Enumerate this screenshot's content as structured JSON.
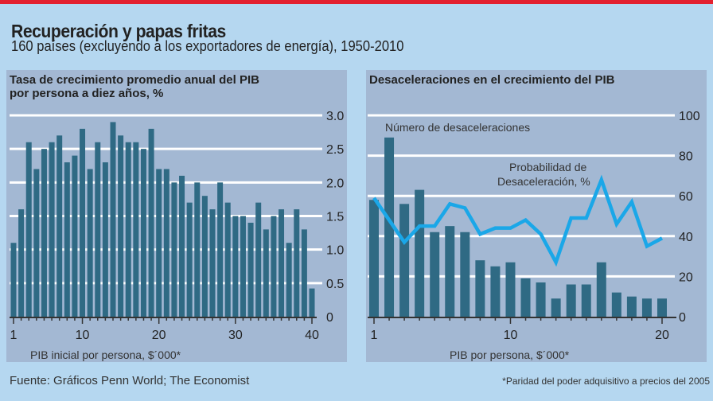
{
  "title": "Recuperación y papas fritas",
  "subtitle": "160 países (excluyendo a los exportadores de energía), 1950-2010",
  "source": "Fuente: Gráficos Penn World; The Economist",
  "footnote": "*Paridad del poder adquisitivo a precios del 2005",
  "colors": {
    "bar": "#2f6a84",
    "line": "#1aa7e8",
    "panel": "#a3b8d3",
    "background": "#b5d7f0",
    "accent": "#e3202f"
  },
  "chart_data": [
    {
      "type": "bar",
      "title": "Tasa de crecimiento promedio anual del PIB por persona a diez años, %",
      "title_lines": [
        "Tasa de crecimiento promedio anual del PIB",
        "por persona a diez años, %"
      ],
      "xlabel": "PIB inicial por persona, $´000*",
      "ylabel": "",
      "ylim": [
        0,
        3.0
      ],
      "yticks": [
        "0",
        "0.5",
        "1.0",
        "1.5",
        "2.0",
        "2.5",
        "3.0"
      ],
      "xticks": [
        "1",
        "10",
        "20",
        "30",
        "40"
      ],
      "x": [
        1,
        2,
        3,
        4,
        5,
        6,
        7,
        8,
        9,
        10,
        11,
        12,
        13,
        14,
        15,
        16,
        17,
        18,
        19,
        20,
        21,
        22,
        23,
        24,
        25,
        26,
        27,
        28,
        29,
        30,
        31,
        32,
        33,
        34,
        35,
        36,
        37,
        38,
        39,
        40
      ],
      "values": [
        1.1,
        1.6,
        2.6,
        2.2,
        2.5,
        2.6,
        2.7,
        2.3,
        2.4,
        2.8,
        2.2,
        2.6,
        2.3,
        2.9,
        2.7,
        2.6,
        2.6,
        2.5,
        2.8,
        2.2,
        2.2,
        2.0,
        2.1,
        1.7,
        2.0,
        1.8,
        1.6,
        2.0,
        1.7,
        1.5,
        1.5,
        1.4,
        1.7,
        1.3,
        1.5,
        1.6,
        1.1,
        1.6,
        1.3,
        0.42
      ],
      "grid": true
    },
    {
      "type": "bar+line",
      "title": "Desaceleraciones en el crecimiento del PIB",
      "xlabel": "PIB por persona, $´000*",
      "ylim": [
        0,
        100
      ],
      "yticks": [
        "0",
        "20",
        "40",
        "60",
        "80",
        "100"
      ],
      "xticks": [
        "1",
        "10",
        "20"
      ],
      "x": [
        1,
        2,
        3,
        4,
        5,
        6,
        7,
        8,
        9,
        10,
        11,
        12,
        13,
        14,
        15,
        16,
        17,
        18,
        19,
        20
      ],
      "series": [
        {
          "name": "Número de desaceleraciones",
          "type": "bar",
          "values": [
            58,
            89,
            56,
            63,
            42,
            45,
            42,
            28,
            25,
            27,
            19,
            17,
            9,
            16,
            16,
            27,
            12,
            10,
            9,
            9
          ]
        },
        {
          "name": "Probabilidad de Desaceleración, %",
          "name_lines": [
            "Probabilidad de",
            "Desaceleración, %"
          ],
          "type": "line",
          "values": [
            59,
            48,
            37,
            45,
            45,
            56,
            54,
            41,
            44,
            44,
            48,
            41,
            27,
            49,
            49,
            68,
            46,
            57,
            35,
            39
          ]
        }
      ],
      "grid": true
    }
  ]
}
